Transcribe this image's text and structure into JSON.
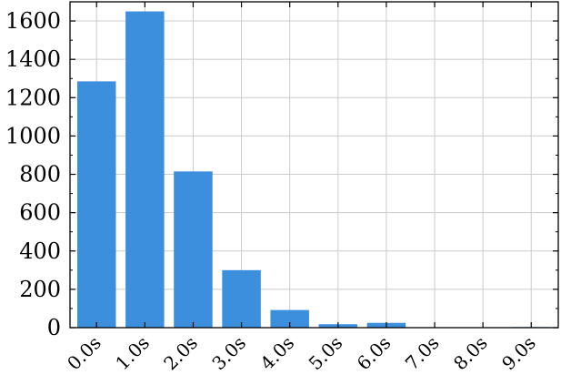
{
  "chart_data": {
    "type": "bar",
    "title": "",
    "xlabel": "",
    "ylabel": "",
    "categories": [
      "0.0s",
      "1.0s",
      "2.0s",
      "3.0s",
      "4.0s",
      "5.0s",
      "6.0s",
      "7.0s",
      "8.0s",
      "9.0s"
    ],
    "values": [
      1285,
      1650,
      815,
      300,
      92,
      18,
      25,
      2,
      2,
      3
    ],
    "ylim": [
      0,
      1700
    ],
    "yticks": [
      0,
      200,
      400,
      600,
      800,
      1000,
      1200,
      1400,
      1600
    ],
    "grid": true,
    "legend": "none",
    "colors": {
      "bar": "#3b8fdc",
      "grid": "#cccccc",
      "axis": "#000000"
    }
  }
}
